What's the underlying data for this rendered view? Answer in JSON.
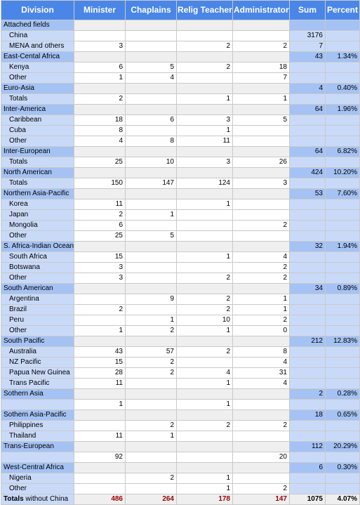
{
  "headers": [
    "Division",
    "Minister",
    "Chaplains",
    "Relig Teacher",
    "Administrator",
    "Sum",
    "Percent"
  ],
  "rows": [
    {
      "type": "div",
      "name": "Attached fields",
      "minister": "",
      "chaplains": "",
      "relig": "",
      "admin": "",
      "sum": "",
      "pct": ""
    },
    {
      "type": "sub",
      "name": "China",
      "minister": "",
      "chaplains": "",
      "relig": "",
      "admin": "",
      "sum": "3176",
      "pct": ""
    },
    {
      "type": "sub",
      "name": "MENA and others",
      "minister": "3",
      "chaplains": "",
      "relig": "2",
      "admin": "2",
      "sum": "7",
      "pct": ""
    },
    {
      "type": "div",
      "name": "East-Cental Africa",
      "minister": "",
      "chaplains": "",
      "relig": "",
      "admin": "",
      "sum": "43",
      "pct": "1.34%"
    },
    {
      "type": "sub",
      "name": "Kenya",
      "minister": "6",
      "chaplains": "5",
      "relig": "2",
      "admin": "18",
      "sum": "",
      "pct": ""
    },
    {
      "type": "sub",
      "name": "Other",
      "minister": "1",
      "chaplains": "4",
      "relig": "",
      "admin": "7",
      "sum": "",
      "pct": ""
    },
    {
      "type": "div",
      "name": "Euro-Asia",
      "minister": "",
      "chaplains": "",
      "relig": "",
      "admin": "",
      "sum": "4",
      "pct": "0.40%"
    },
    {
      "type": "sub",
      "name": "Totals",
      "minister": "2",
      "chaplains": "",
      "relig": "1",
      "admin": "1",
      "sum": "",
      "pct": ""
    },
    {
      "type": "div",
      "name": "Inter-America",
      "minister": "",
      "chaplains": "",
      "relig": "",
      "admin": "",
      "sum": "64",
      "pct": "1.96%"
    },
    {
      "type": "sub",
      "name": "Caribbean",
      "minister": "18",
      "chaplains": "6",
      "relig": "3",
      "admin": "5",
      "sum": "",
      "pct": ""
    },
    {
      "type": "sub",
      "name": "Cuba",
      "minister": "8",
      "chaplains": "",
      "relig": "1",
      "admin": "",
      "sum": "",
      "pct": ""
    },
    {
      "type": "sub",
      "name": "Other",
      "minister": "4",
      "chaplains": "8",
      "relig": "11",
      "admin": "",
      "sum": "",
      "pct": ""
    },
    {
      "type": "div",
      "name": "Inter-European",
      "minister": "",
      "chaplains": "",
      "relig": "",
      "admin": "",
      "sum": "64",
      "pct": "6.82%"
    },
    {
      "type": "sub",
      "name": "Totals",
      "minister": "25",
      "chaplains": "10",
      "relig": "3",
      "admin": "26",
      "sum": "",
      "pct": ""
    },
    {
      "type": "div",
      "name": "North American",
      "minister": "",
      "chaplains": "",
      "relig": "",
      "admin": "",
      "sum": "424",
      "pct": "10.20%"
    },
    {
      "type": "sub",
      "name": "Totals",
      "minister": "150",
      "chaplains": "147",
      "relig": "124",
      "admin": "3",
      "sum": "",
      "pct": ""
    },
    {
      "type": "div",
      "name": "Northern Asia-Pacific",
      "minister": "",
      "chaplains": "",
      "relig": "",
      "admin": "",
      "sum": "53",
      "pct": "7.60%"
    },
    {
      "type": "sub",
      "name": "Korea",
      "minister": "11",
      "chaplains": "",
      "relig": "1",
      "admin": "",
      "sum": "",
      "pct": ""
    },
    {
      "type": "sub",
      "name": "Japan",
      "minister": "2",
      "chaplains": "1",
      "relig": "",
      "admin": "",
      "sum": "",
      "pct": ""
    },
    {
      "type": "sub",
      "name": "Mongolia",
      "minister": "6",
      "chaplains": "",
      "relig": "",
      "admin": "2",
      "sum": "",
      "pct": ""
    },
    {
      "type": "sub",
      "name": "Other",
      "minister": "25",
      "chaplains": "5",
      "relig": "",
      "admin": "",
      "sum": "",
      "pct": ""
    },
    {
      "type": "div",
      "name": "S. Africa-Indian Ocean",
      "minister": "",
      "chaplains": "",
      "relig": "",
      "admin": "",
      "sum": "32",
      "pct": "1.94%"
    },
    {
      "type": "sub",
      "name": "South Africa",
      "minister": "15",
      "chaplains": "",
      "relig": "1",
      "admin": "4",
      "sum": "",
      "pct": ""
    },
    {
      "type": "sub",
      "name": "Botswana",
      "minister": "3",
      "chaplains": "",
      "relig": "",
      "admin": "2",
      "sum": "",
      "pct": ""
    },
    {
      "type": "sub",
      "name": "Other",
      "minister": "3",
      "chaplains": "",
      "relig": "2",
      "admin": "2",
      "sum": "",
      "pct": ""
    },
    {
      "type": "div",
      "name": "South American",
      "minister": "",
      "chaplains": "",
      "relig": "",
      "admin": "",
      "sum": "34",
      "pct": "0.89%"
    },
    {
      "type": "sub",
      "name": "Argentina",
      "minister": "",
      "chaplains": "9",
      "relig": "2",
      "admin": "1",
      "sum": "",
      "pct": ""
    },
    {
      "type": "sub",
      "name": "Brazil",
      "minister": "2",
      "chaplains": "",
      "relig": "2",
      "admin": "1",
      "sum": "",
      "pct": ""
    },
    {
      "type": "sub",
      "name": "Peru",
      "minister": "",
      "chaplains": "1",
      "relig": "10",
      "admin": "2",
      "sum": "",
      "pct": ""
    },
    {
      "type": "sub",
      "name": "Other",
      "minister": "1",
      "chaplains": "2",
      "relig": "1",
      "admin": "0",
      "sum": "",
      "pct": ""
    },
    {
      "type": "div",
      "name": "South Pacific",
      "minister": "",
      "chaplains": "",
      "relig": "",
      "admin": "",
      "sum": "212",
      "pct": "12.83%"
    },
    {
      "type": "sub",
      "name": "Australia",
      "minister": "43",
      "chaplains": "57",
      "relig": "2",
      "admin": "8",
      "sum": "",
      "pct": ""
    },
    {
      "type": "sub",
      "name": "NZ Pacific",
      "minister": "15",
      "chaplains": "2",
      "relig": "",
      "admin": "4",
      "sum": "",
      "pct": ""
    },
    {
      "type": "sub",
      "name": "Papua New Guinea",
      "minister": "28",
      "chaplains": "2",
      "relig": "4",
      "admin": "31",
      "sum": "",
      "pct": ""
    },
    {
      "type": "sub",
      "name": "Trans Pacific",
      "minister": "11",
      "chaplains": "",
      "relig": "1",
      "admin": "4",
      "sum": "",
      "pct": ""
    },
    {
      "type": "div",
      "name": "Sothern Asia",
      "minister": "",
      "chaplains": "",
      "relig": "",
      "admin": "",
      "sum": "2",
      "pct": "0.28%"
    },
    {
      "type": "sub",
      "name": "",
      "minister": "1",
      "chaplains": "",
      "relig": "1",
      "admin": "",
      "sum": "",
      "pct": ""
    },
    {
      "type": "div",
      "name": "Sothern Asia-Pacific",
      "minister": "",
      "chaplains": "",
      "relig": "",
      "admin": "",
      "sum": "18",
      "pct": "0.65%"
    },
    {
      "type": "sub",
      "name": "Philippines",
      "minister": "",
      "chaplains": "2",
      "relig": "2",
      "admin": "2",
      "sum": "",
      "pct": ""
    },
    {
      "type": "sub",
      "name": "Thailand",
      "minister": "11",
      "chaplains": "1",
      "relig": "",
      "admin": "",
      "sum": "",
      "pct": ""
    },
    {
      "type": "div",
      "name": "Trans-European",
      "minister": "",
      "chaplains": "",
      "relig": "",
      "admin": "",
      "sum": "112",
      "pct": "20.29%"
    },
    {
      "type": "sub",
      "name": "",
      "minister": "92",
      "chaplains": "",
      "relig": "",
      "admin": "20",
      "sum": "",
      "pct": ""
    },
    {
      "type": "div",
      "name": "West-Central Africa",
      "minister": "",
      "chaplains": "",
      "relig": "",
      "admin": "",
      "sum": "6",
      "pct": "0.30%"
    },
    {
      "type": "sub",
      "name": "Nigeria",
      "minister": "",
      "chaplains": "2",
      "relig": "1",
      "admin": "",
      "sum": "",
      "pct": ""
    },
    {
      "type": "sub",
      "name": "Other",
      "minister": "",
      "chaplains": "",
      "relig": "1",
      "admin": "2",
      "sum": "",
      "pct": ""
    }
  ],
  "totals": {
    "label_bold": "Totals",
    "label_rest": " without China",
    "minister": "486",
    "chaplains": "264",
    "relig": "178",
    "admin": "147",
    "sum": "1075",
    "pct": "4.07%"
  },
  "colors": {
    "header": "#4a86e8",
    "division_row": "#a4c2f4",
    "sub_row": "#c9daf8",
    "total_values": "#990000"
  }
}
